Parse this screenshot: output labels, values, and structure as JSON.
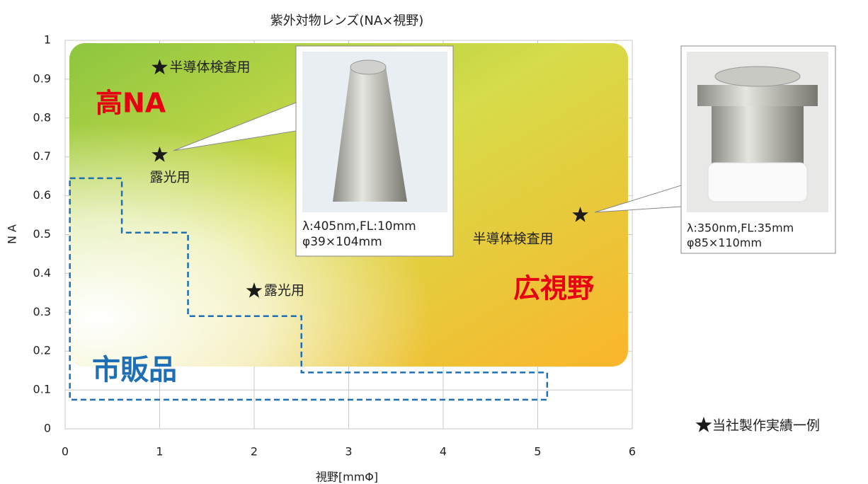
{
  "chart_data": {
    "type": "scatter",
    "title": "紫外対物レンズ(NA×視野)",
    "x_label": "視野[mmΦ]",
    "y_label": "N A",
    "xlim": [
      0,
      6
    ],
    "ylim": [
      0,
      1
    ],
    "xticks": [
      0,
      1,
      2,
      3,
      4,
      5,
      6
    ],
    "yticks": [
      0,
      0.1,
      0.2,
      0.3,
      0.4,
      0.5,
      0.6,
      0.7,
      0.8,
      0.9,
      1
    ],
    "grid": true,
    "series": [
      {
        "name": "当社製作実績一例",
        "color": "#1a1a1a",
        "x": [
          1,
          1,
          2,
          5.45
        ],
        "values": [
          0.93,
          0.705,
          0.355,
          0.55
        ]
      }
    ],
    "point_labels": [
      "半導体検査用",
      "露光用",
      "露光用",
      "半導体検査用"
    ],
    "region_labels": [
      "高NA",
      "広視野",
      "市販品"
    ],
    "commercial_region": {
      "color": "#1f6fb5",
      "x": [
        0.05,
        0.6,
        0.6,
        1.3,
        1.3,
        2.5,
        2.5,
        5.1,
        5.1,
        0.05
      ],
      "y": [
        0.645,
        0.645,
        0.505,
        0.505,
        0.29,
        0.29,
        0.145,
        0.145,
        0.075,
        0.075
      ]
    },
    "callouts": [
      {
        "lines": [
          "λ:405nm,FL:10mm",
          "φ39×104mm"
        ]
      },
      {
        "lines": [
          "λ:350nm,FL:35mm",
          "φ85×110mm"
        ]
      }
    ]
  }
}
